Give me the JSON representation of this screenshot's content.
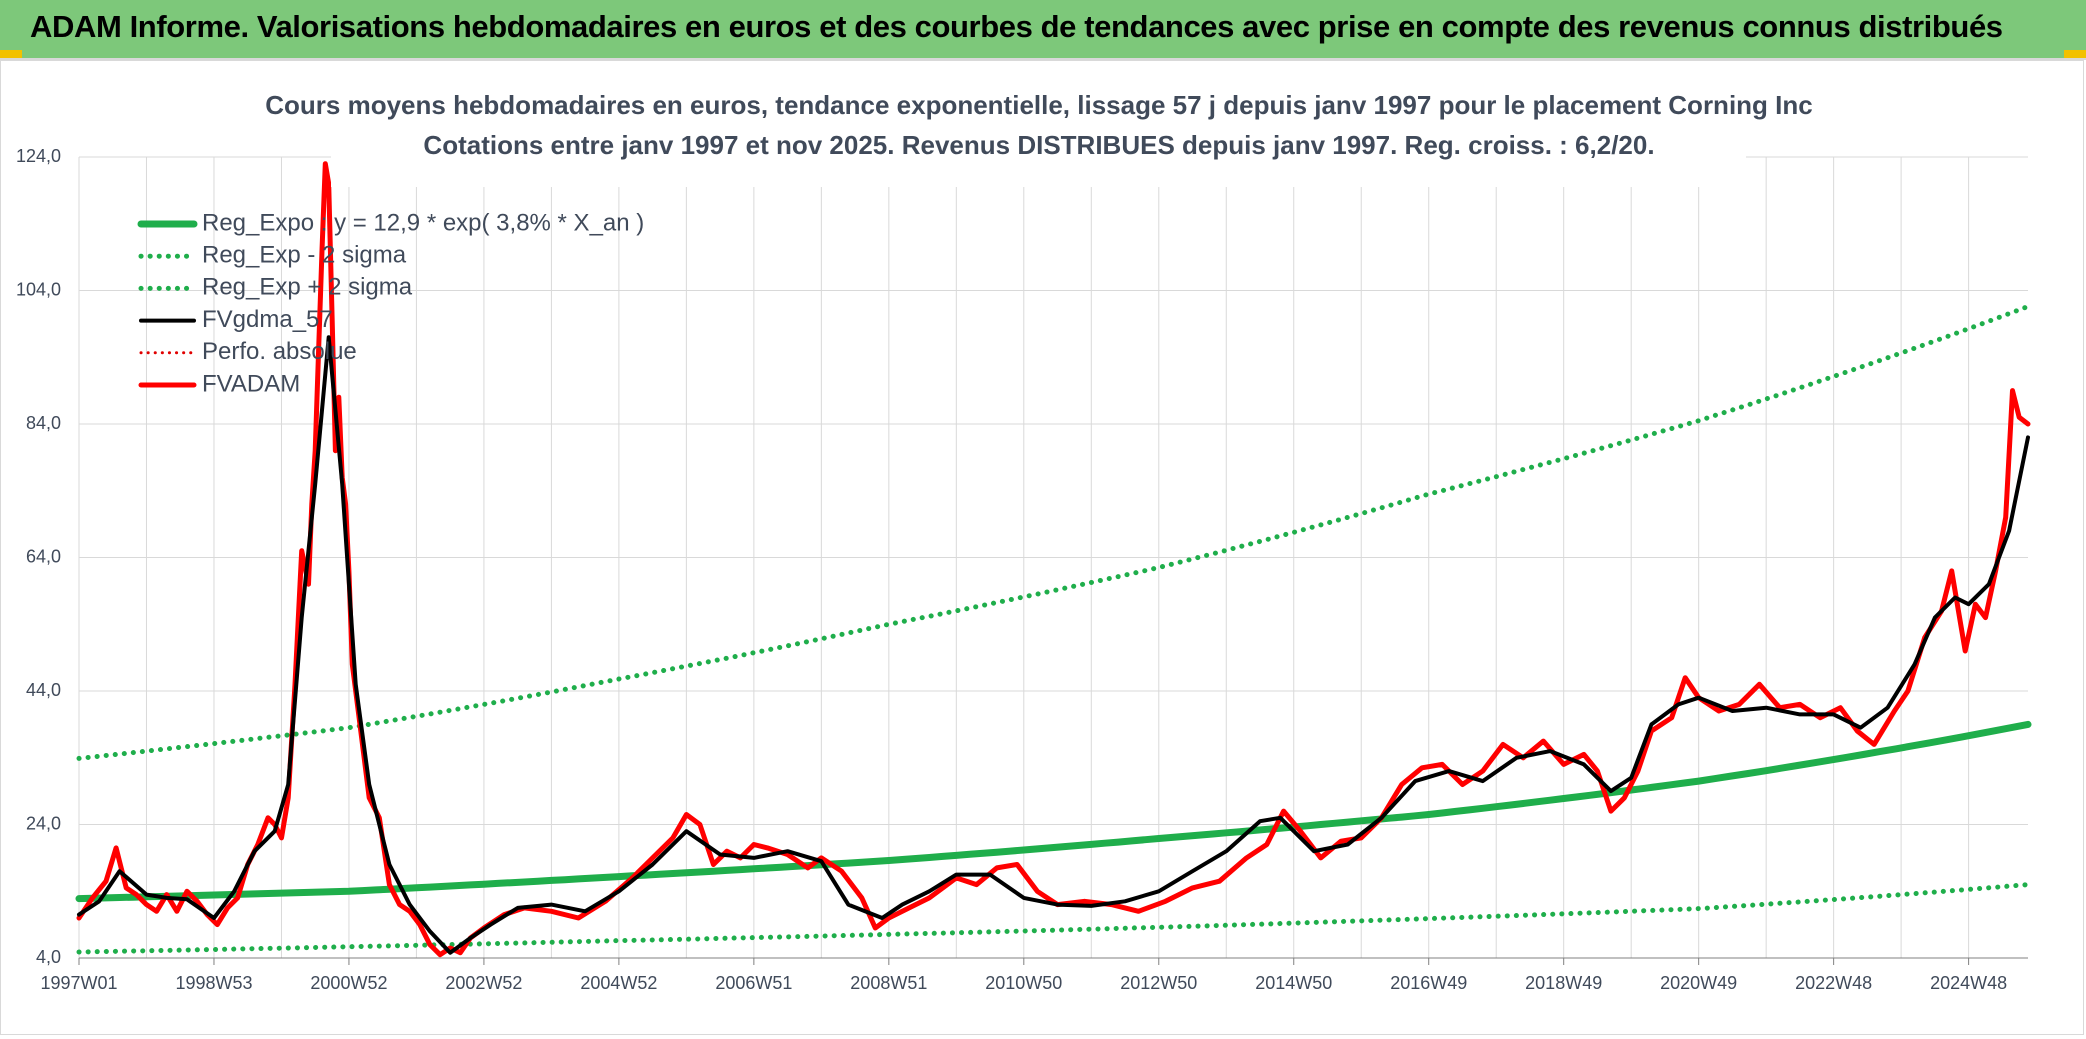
{
  "header": {
    "title": "ADAM Informe. Valorisations hebdomadaires en euros et des courbes de tendances avec prise en compte des revenus connus distribués"
  },
  "colors": {
    "banner": "#7dc87a",
    "reg_expo": "#1fae4b",
    "fvgdma": "#000000",
    "fvadam": "#ff0000",
    "perfo": "#e00000",
    "grid": "#d9d9d9"
  },
  "chart_data": {
    "type": "line",
    "title": "Cours moyens hebdomadaires en euros, tendance exponentielle, lissage 57 j depuis janv 1997 pour le placement Corning Inc",
    "subtitle": "Cotations entre janv 1997 et nov 2025. Revenus DISTRIBUES depuis janv 1997. Reg. croiss. : 6,2/20.",
    "xlabel": "",
    "ylabel": "",
    "x_range": [
      1997.0,
      2025.88
    ],
    "ylim": [
      4,
      124
    ],
    "y_ticks": [
      "4,0",
      "24,0",
      "44,0",
      "64,0",
      "84,0",
      "104,0",
      "124,0"
    ],
    "x_tick_labels": [
      "1997W01",
      "1998W53",
      "2000W52",
      "2002W52",
      "2004W52",
      "2006W51",
      "2008W51",
      "2010W50",
      "2012W50",
      "2014W50",
      "2016W49",
      "2018W49",
      "2020W49",
      "2022W48",
      "2024W48"
    ],
    "grid": true,
    "legend_position": "top-left",
    "legend": [
      {
        "label": "Reg_Expo : y = 12,9 * exp( 3,8% *  X_an )",
        "style": "solid-green-thick"
      },
      {
        "label": "Reg_Exp - 2 sigma",
        "style": "dotted-green"
      },
      {
        "label": "Reg_Exp + 2 sigma",
        "style": "dotted-green"
      },
      {
        "label": "FVgdma_57",
        "style": "solid-black"
      },
      {
        "label": "Perfo. absolue",
        "style": "dotted-red"
      },
      {
        "label": "FVADAM",
        "style": "solid-red-thick"
      }
    ],
    "series": [
      {
        "name": "Reg_Expo : y = 12,9 * exp( 3,8% *  X_an )",
        "x": [
          1997.0,
          2001.0,
          2005.0,
          2009.0,
          2013.0,
          2017.0,
          2021.0,
          2025.88
        ],
        "values": [
          12.9,
          14.0,
          16.2,
          18.6,
          21.9,
          25.5,
          30.5,
          39.0
        ]
      },
      {
        "name": "Reg_Exp - 2 sigma",
        "x": [
          1997.0,
          2005.0,
          2013.0,
          2021.0,
          2025.88
        ],
        "values": [
          4.9,
          6.6,
          8.6,
          11.4,
          15.0
        ]
      },
      {
        "name": "Reg_Exp + 2 sigma",
        "x": [
          1997.0,
          2001.0,
          2005.0,
          2009.0,
          2013.0,
          2017.0,
          2021.0,
          2025.88
        ],
        "values": [
          33.9,
          38.5,
          45.8,
          54.0,
          62.5,
          73.5,
          84.5,
          101.6
        ]
      },
      {
        "name": "FVgdma_57",
        "x": [
          1997.0,
          1997.3,
          1997.6,
          1998.0,
          1998.3,
          1998.6,
          1999.0,
          1999.3,
          1999.6,
          1999.9,
          2000.1,
          2000.3,
          2000.5,
          2000.7,
          2000.9,
          2001.1,
          2001.3,
          2001.6,
          2001.9,
          2002.2,
          2002.5,
          2002.8,
          2003.1,
          2003.5,
          2004.0,
          2004.5,
          2005.0,
          2005.5,
          2006.0,
          2006.5,
          2007.0,
          2007.5,
          2008.0,
          2008.4,
          2008.9,
          2009.2,
          2009.6,
          2010.0,
          2010.5,
          2011.0,
          2011.5,
          2012.0,
          2012.5,
          2013.0,
          2013.5,
          2014.0,
          2014.5,
          2014.8,
          2015.3,
          2015.8,
          2016.3,
          2016.8,
          2017.3,
          2017.8,
          2018.3,
          2018.8,
          2019.3,
          2019.7,
          2020.0,
          2020.3,
          2020.7,
          2021.0,
          2021.5,
          2022.0,
          2022.5,
          2023.0,
          2023.4,
          2023.8,
          2024.2,
          2024.5,
          2024.8,
          2025.0,
          2025.3,
          2025.6,
          2025.88
        ],
        "values": [
          10.5,
          12.5,
          17.0,
          13.5,
          13.0,
          12.8,
          10.0,
          14.0,
          20.0,
          23.0,
          30.0,
          55.0,
          75.0,
          97.0,
          75.0,
          45.0,
          30.0,
          18.0,
          12.0,
          8.0,
          4.8,
          7.0,
          9.0,
          11.5,
          12.0,
          11.0,
          14.0,
          18.0,
          23.0,
          19.5,
          19.0,
          20.0,
          18.5,
          12.0,
          10.0,
          12.0,
          14.0,
          16.5,
          16.5,
          13.0,
          12.0,
          11.8,
          12.5,
          14.0,
          17.0,
          20.0,
          24.5,
          25.0,
          20.0,
          21.0,
          25.0,
          30.5,
          32.0,
          30.5,
          34.0,
          35.0,
          33.0,
          29.0,
          31.0,
          39.0,
          42.0,
          43.0,
          41.0,
          41.5,
          40.5,
          40.5,
          38.5,
          41.5,
          48.0,
          55.0,
          58.0,
          57.0,
          60.0,
          68.0,
          82.0
        ]
      },
      {
        "name": "FVADAM",
        "x": [
          1997.0,
          1997.2,
          1997.4,
          1997.55,
          1997.7,
          1997.85,
          1998.0,
          1998.15,
          1998.3,
          1998.45,
          1998.6,
          1998.75,
          1998.9,
          1999.05,
          1999.2,
          1999.35,
          1999.5,
          1999.65,
          1999.8,
          1999.9,
          2000.0,
          2000.1,
          2000.2,
          2000.3,
          2000.4,
          2000.45,
          2000.5,
          2000.55,
          2000.6,
          2000.65,
          2000.7,
          2000.75,
          2000.8,
          2000.85,
          2000.9,
          2000.95,
          2001.0,
          2001.05,
          2001.15,
          2001.3,
          2001.45,
          2001.6,
          2001.75,
          2001.9,
          2002.05,
          2002.2,
          2002.35,
          2002.5,
          2002.65,
          2002.8,
          2003.0,
          2003.3,
          2003.6,
          2004.0,
          2004.4,
          2004.8,
          2005.2,
          2005.5,
          2005.8,
          2006.0,
          2006.2,
          2006.4,
          2006.6,
          2006.8,
          2007.0,
          2007.2,
          2007.5,
          2007.8,
          2008.0,
          2008.3,
          2008.6,
          2008.8,
          2009.0,
          2009.3,
          2009.6,
          2010.0,
          2010.3,
          2010.6,
          2010.9,
          2011.2,
          2011.5,
          2011.9,
          2012.3,
          2012.7,
          2013.1,
          2013.5,
          2013.9,
          2014.3,
          2014.6,
          2014.85,
          2015.1,
          2015.4,
          2015.7,
          2016.0,
          2016.3,
          2016.6,
          2016.9,
          2017.2,
          2017.5,
          2017.8,
          2018.1,
          2018.4,
          2018.7,
          2019.0,
          2019.3,
          2019.5,
          2019.7,
          2019.9,
          2020.1,
          2020.3,
          2020.6,
          2020.8,
          2021.0,
          2021.3,
          2021.6,
          2021.9,
          2022.2,
          2022.5,
          2022.8,
          2023.1,
          2023.35,
          2023.6,
          2023.9,
          2024.1,
          2024.35,
          2024.6,
          2024.75,
          2024.95,
          2025.1,
          2025.25,
          2025.4,
          2025.55,
          2025.65,
          2025.75,
          2025.88
        ],
        "values": [
          10.0,
          13.0,
          15.5,
          20.5,
          14.5,
          13.5,
          12.0,
          11.0,
          13.5,
          11.0,
          14.0,
          12.5,
          10.5,
          9.0,
          11.5,
          13.0,
          18.0,
          21.0,
          25.0,
          24.0,
          22.0,
          28.0,
          45.0,
          65.0,
          60.0,
          72.0,
          80.0,
          95.0,
          110.0,
          123.0,
          120.0,
          100.0,
          80.0,
          88.0,
          76.0,
          72.0,
          62.0,
          48.0,
          40.0,
          28.0,
          25.0,
          15.0,
          12.0,
          11.0,
          9.0,
          6.0,
          4.5,
          5.5,
          4.8,
          7.0,
          8.5,
          10.5,
          11.5,
          11.0,
          10.0,
          12.5,
          16.0,
          19.0,
          22.0,
          25.5,
          24.0,
          18.0,
          20.0,
          19.0,
          21.0,
          20.5,
          19.5,
          17.5,
          19.0,
          17.0,
          13.0,
          8.5,
          10.0,
          11.5,
          13.0,
          16.0,
          15.0,
          17.5,
          18.0,
          14.0,
          12.0,
          12.5,
          12.0,
          11.0,
          12.5,
          14.5,
          15.5,
          19.0,
          21.0,
          26.0,
          23.0,
          19.0,
          21.5,
          22.0,
          25.0,
          30.0,
          32.5,
          33.0,
          30.0,
          32.0,
          36.0,
          34.0,
          36.5,
          33.0,
          34.5,
          32.0,
          26.0,
          28.0,
          32.0,
          38.0,
          40.0,
          46.0,
          43.0,
          41.0,
          42.0,
          45.0,
          41.5,
          42.0,
          40.0,
          41.5,
          38.0,
          36.0,
          41.0,
          44.0,
          52.0,
          56.0,
          62.0,
          50.0,
          57.0,
          55.0,
          62.0,
          70.0,
          89.0,
          85.0,
          84.0
        ]
      }
    ]
  }
}
